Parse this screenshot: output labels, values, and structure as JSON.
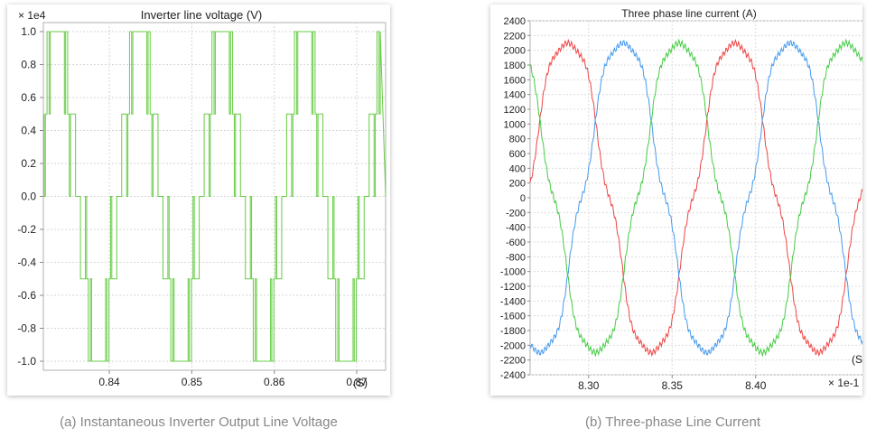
{
  "chart_data": [
    {
      "type": "line",
      "title": "Inverter line voltage (V)",
      "xlabel": "(S)",
      "ylabel": "",
      "y_multiplier_label": "× 1e4",
      "caption": "(a) Instantaneous Inverter Output Line Voltage",
      "xlim": [
        0.832,
        0.8735
      ],
      "ylim": [
        -1.0,
        1.0
      ],
      "x_ticks": [
        0.84,
        0.85,
        0.86,
        0.87
      ],
      "x_tick_labels": [
        "0.84",
        "0.85",
        "0.86",
        "0.87"
      ],
      "y_ticks": [
        1.0,
        0.8,
        0.6,
        0.4,
        0.2,
        0.0,
        -0.2,
        -0.4,
        -0.6,
        -0.8,
        -1.0
      ],
      "y_tick_labels": [
        "1.0",
        "0.8",
        "0.6",
        "0.4",
        "0.2",
        "0.0",
        "-0.2",
        "-0.4",
        "-0.6",
        "-0.8",
        "-1.0"
      ],
      "grid": true,
      "series": [
        {
          "color": "#66cc44",
          "period": 0.01,
          "first_positive_center": 0.8337,
          "levels": [
            0.5,
            1.0
          ],
          "waveform": "5-level stepped PWM (0, ±0.5, ±1.0 ×1e4 V)"
        }
      ]
    },
    {
      "type": "line",
      "title": "Three phase line current (A)",
      "xlabel": "(S",
      "ylabel": "",
      "x_multiplier_label": "× 1e-1",
      "caption": "(b) Three-phase Line Current",
      "xlim": [
        8.265,
        8.465
      ],
      "ylim": [
        -2400,
        2400
      ],
      "x_ticks": [
        8.3,
        8.35,
        8.4
      ],
      "x_tick_labels": [
        "8.30",
        "8.35",
        "8.40"
      ],
      "y_ticks": [
        2400,
        2200,
        2000,
        1800,
        1600,
        1400,
        1200,
        1000,
        800,
        600,
        400,
        200,
        0,
        -200,
        -400,
        -600,
        -800,
        -1000,
        -1200,
        -1400,
        -1600,
        -1800,
        -2000,
        -2200,
        -2400
      ],
      "y_tick_labels": [
        "2400",
        "2200",
        "2000",
        "1800",
        "1600",
        "1400",
        "1200",
        "1000",
        "800",
        "600",
        "400",
        "200",
        "0",
        "-200",
        "-400",
        "-600",
        "-800",
        "-1000",
        "-1200",
        "-1400",
        "-1600",
        "-1800",
        "-2000",
        "-2200",
        "-2400"
      ],
      "grid": true,
      "period": 0.1,
      "amplitude": 2150,
      "series": [
        {
          "color": "#ee4444",
          "peak_x": 8.2875
        },
        {
          "color": "#4499ee",
          "peak_x": 8.3208
        },
        {
          "color": "#44cc44",
          "peak_x": 8.2542
        }
      ]
    }
  ]
}
